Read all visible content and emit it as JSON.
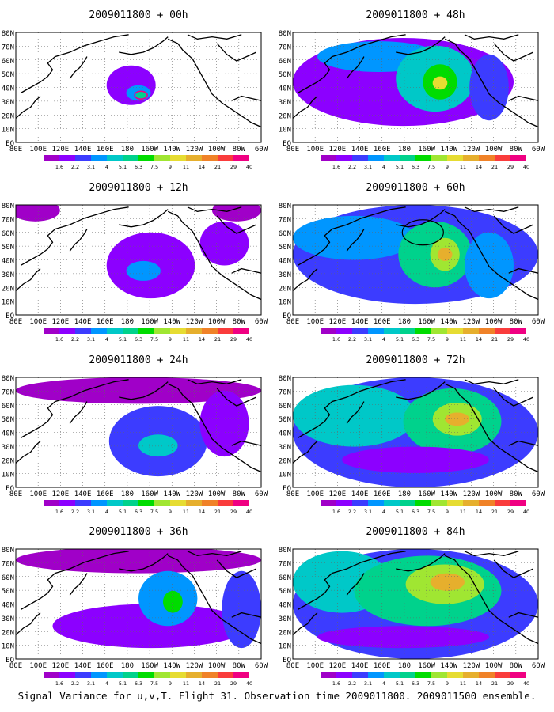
{
  "caption": "Signal Variance for u,v,T. Flight 31. Observation time 2009011800. 2009011500 ensemble.",
  "lon_labels": [
    "80E",
    "100E",
    "120E",
    "140E",
    "160E",
    "180",
    "160W",
    "140W",
    "120W",
    "100W",
    "80W",
    "60W"
  ],
  "lat_labels": [
    "80N",
    "70N",
    "60N",
    "50N",
    "40N",
    "30N",
    "20N",
    "10N",
    "EQ"
  ],
  "legend": {
    "levels": [
      "1.6",
      "2.2",
      "3.1",
      "4",
      "5.1",
      "6.3",
      "7.5",
      "9",
      "11",
      "14",
      "21",
      "29",
      "40"
    ],
    "colors": [
      "#a000c8",
      "#8c00ff",
      "#3c3cff",
      "#0096ff",
      "#00c8c8",
      "#00d28c",
      "#00dc00",
      "#a0e632",
      "#e6dc32",
      "#e6af2d",
      "#f08228",
      "#fa3c3c",
      "#f00082"
    ]
  },
  "panels": [
    {
      "title": "2009011800 + 00h",
      "lead_hours": 0
    },
    {
      "title": "2009011800 + 48h",
      "lead_hours": 48
    },
    {
      "title": "2009011800 + 12h",
      "lead_hours": 12
    },
    {
      "title": "2009011800 + 60h",
      "lead_hours": 60
    },
    {
      "title": "2009011800 + 24h",
      "lead_hours": 24
    },
    {
      "title": "2009011800 + 72h",
      "lead_hours": 72
    },
    {
      "title": "2009011800 + 36h",
      "lead_hours": 36
    },
    {
      "title": "2009011800 + 84h",
      "lead_hours": 84
    }
  ]
}
